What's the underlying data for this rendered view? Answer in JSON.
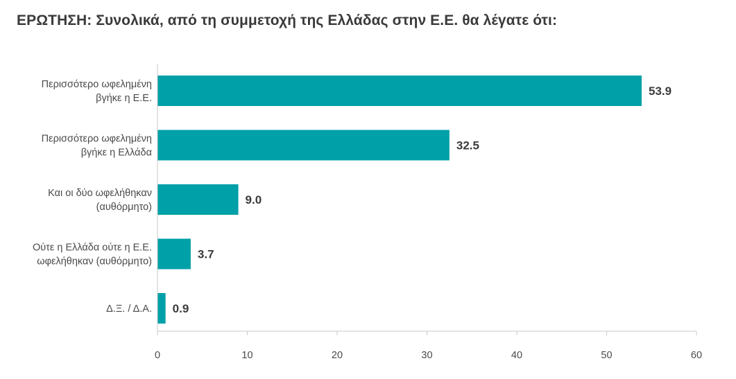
{
  "chart_data": {
    "type": "bar",
    "orientation": "horizontal",
    "title": "ΕΡΩΤΗΣΗ: Συνολικά, από τη συμμετοχή της Ελλάδας στην Ε.Ε. θα λέγατε ότι:",
    "categories": [
      [
        "Περισσότερο ωφελημένη",
        "βγήκε η Ε.Ε."
      ],
      [
        "Περισσότερο ωφελημένη",
        "βγήκε η Ελλάδα"
      ],
      [
        "Και οι δύο ωφελήθηκαν",
        "(αυθόρμητο)"
      ],
      [
        "Ούτε η Ελλάδα ούτε η Ε.Ε.",
        "ωφελήθηκαν (αυθόρμητο)"
      ],
      [
        "Δ.Ξ. / Δ.Α."
      ]
    ],
    "values": [
      53.9,
      32.5,
      9.0,
      3.7,
      0.9
    ],
    "value_labels": [
      "53.9",
      "32.5",
      "9.0",
      "3.7",
      "0.9"
    ],
    "xlim": [
      0,
      60
    ],
    "xticks": [
      "0",
      "10",
      "20",
      "30",
      "40",
      "50",
      "60"
    ],
    "xtick_values": [
      0,
      10,
      20,
      30,
      40,
      50,
      60
    ],
    "bar_color": "#00A0A8",
    "axis_color": "#c8c8c8",
    "grid": false,
    "legend": "none",
    "xlabel": "",
    "ylabel": ""
  }
}
